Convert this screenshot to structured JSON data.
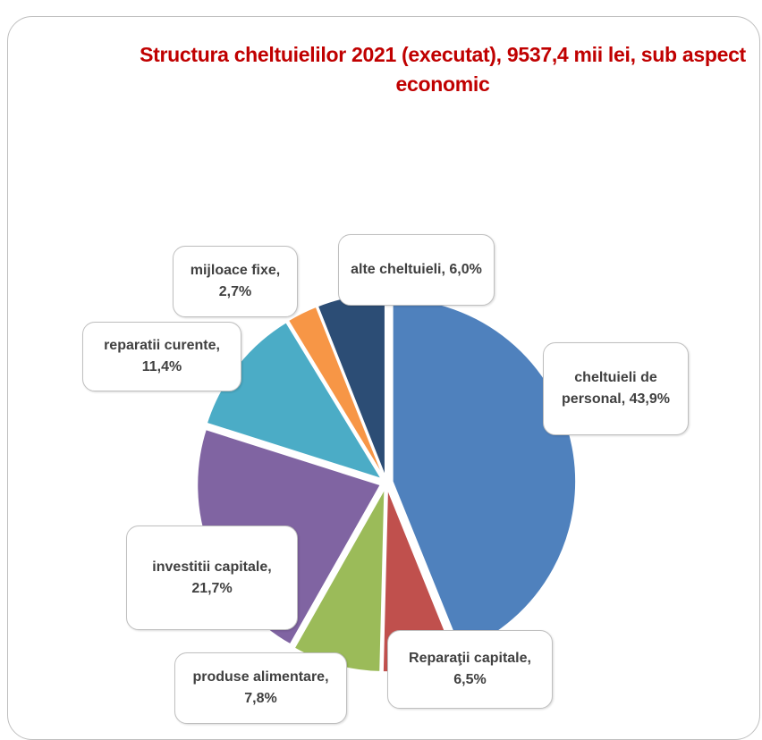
{
  "chart_data": {
    "type": "pie",
    "title": "Structura cheltuielilor 2021 (executat), 9537,4 mii lei, sub aspect economic",
    "categories": [
      "cheltuieli de personal,",
      "Reparaţii capitale,",
      "produse alimentare,",
      "investitii capitale,",
      "reparatii curente,",
      "mijloace fixe,",
      "alte cheltuieli,"
    ],
    "values": [
      43.9,
      6.5,
      7.8,
      21.7,
      11.4,
      2.7,
      6.0
    ],
    "value_labels": [
      "43,9%",
      "6,5%",
      "7,8%",
      "21,7%",
      "11,4%",
      "2,7%",
      "6,0%"
    ],
    "colors": [
      "#4f81bd",
      "#c0504d",
      "#9bbb59",
      "#8064a2",
      "#4bacc6",
      "#f79646",
      "#2c4d75"
    ]
  }
}
